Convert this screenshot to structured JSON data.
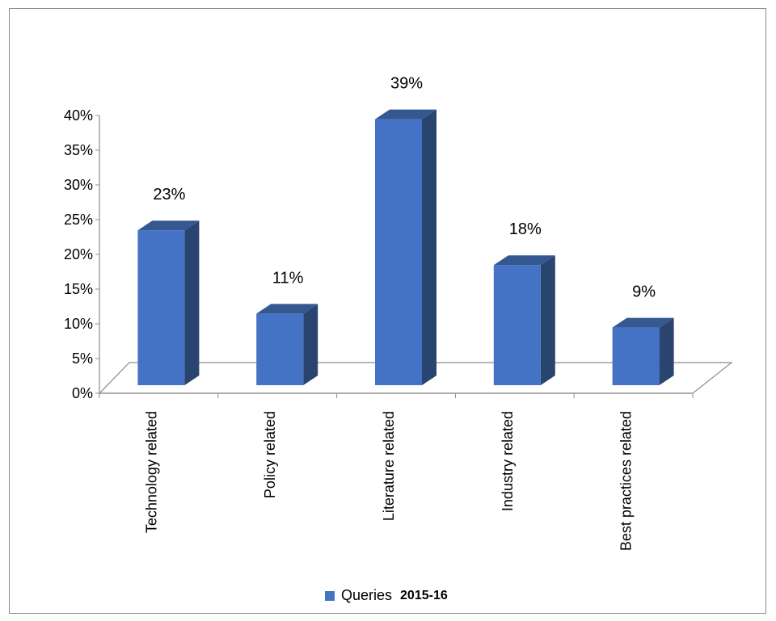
{
  "chart_data": {
    "type": "bar",
    "style": "3d-column",
    "categories": [
      "Technology related",
      "Policy related",
      "Literature related",
      "Industry related",
      "Best practices related"
    ],
    "series": [
      {
        "name": "Queries 2015-16",
        "values": [
          23,
          11,
          39,
          18,
          9
        ]
      }
    ],
    "data_labels": [
      "23%",
      "11%",
      "39%",
      "18%",
      "9%"
    ],
    "y_ticks": [
      "0%",
      "5%",
      "10%",
      "15%",
      "20%",
      "25%",
      "30%",
      "35%",
      "40%"
    ],
    "ylim": [
      0,
      40
    ],
    "y_unit": "%",
    "title": "",
    "xlabel": "",
    "ylabel": "",
    "grid": false,
    "legend_position": "bottom",
    "colors": {
      "bar_front": "#4472c4",
      "bar_side": "#2a4470",
      "bar_top": "#34588f",
      "axis": "#8c8c8c"
    }
  },
  "legend": {
    "label": "Queries",
    "year": "2015-16"
  }
}
